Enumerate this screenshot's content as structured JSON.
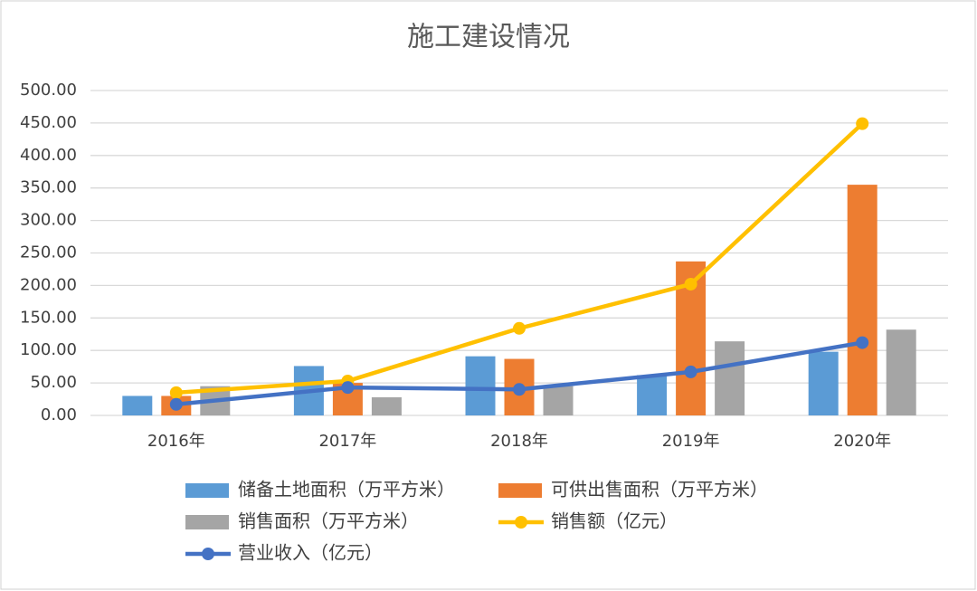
{
  "chart_data": {
    "type": "bar",
    "title": "施工建设情况",
    "categories": [
      "2016年",
      "2017年",
      "2018年",
      "2019年",
      "2020年"
    ],
    "series": [
      {
        "name": "储备土地面积（万平方米）",
        "type": "bar",
        "color": "#5b9bd5",
        "values": [
          30,
          76,
          91,
          62,
          98
        ]
      },
      {
        "name": "可供出售面积（万平方米）",
        "type": "bar",
        "color": "#ed7d31",
        "values": [
          30,
          50,
          87,
          237,
          355
        ]
      },
      {
        "name": "销售面积（万平方米）",
        "type": "bar",
        "color": "#a5a5a5",
        "values": [
          45,
          28,
          45,
          114,
          132
        ]
      },
      {
        "name": "销售额（亿元）",
        "type": "line",
        "color": "#ffc000",
        "values": [
          35,
          53,
          134,
          202,
          449
        ]
      },
      {
        "name": "营业收入（亿元）",
        "type": "line",
        "color": "#4472c4",
        "values": [
          17,
          43,
          40,
          67,
          112
        ]
      }
    ],
    "ylim": [
      0,
      500
    ],
    "yticks": [
      {
        "value": 0,
        "label": "0.00"
      },
      {
        "value": 50,
        "label": "50.00"
      },
      {
        "value": 100,
        "label": "100.00"
      },
      {
        "value": 150,
        "label": "150.00"
      },
      {
        "value": 200,
        "label": "200.00"
      },
      {
        "value": 250,
        "label": "250.00"
      },
      {
        "value": 300,
        "label": "300.00"
      },
      {
        "value": 350,
        "label": "350.00"
      },
      {
        "value": 400,
        "label": "400.00"
      },
      {
        "value": 450,
        "label": "450.00"
      },
      {
        "value": 500,
        "label": "500.00"
      }
    ],
    "grid": true,
    "legend": "bottom"
  }
}
